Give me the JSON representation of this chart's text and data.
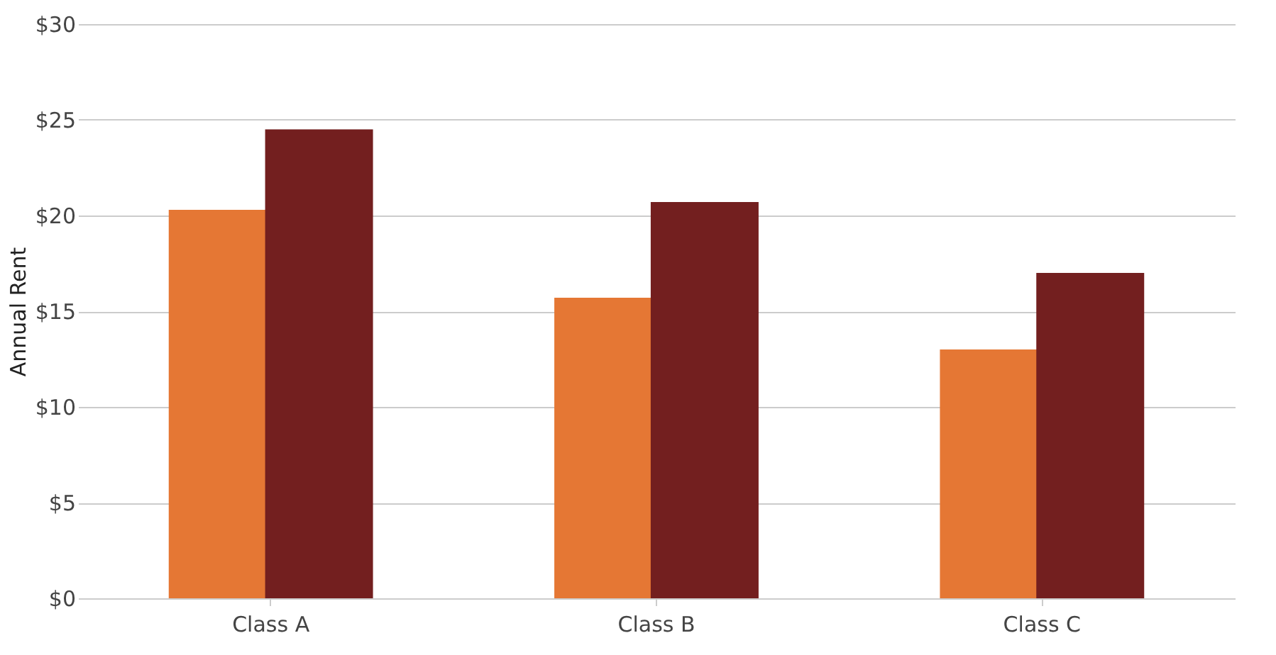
{
  "chart_data": {
    "type": "bar",
    "ylabel": "Annual Rent",
    "categories": [
      "Class A",
      "Class B",
      "Class C"
    ],
    "series": [
      {
        "color": "#e57734",
        "values": [
          20.3,
          15.7,
          13.0
        ]
      },
      {
        "color": "#731f1f",
        "values": [
          24.5,
          20.7,
          17.0
        ]
      }
    ],
    "ylim": [
      0,
      30
    ],
    "yticks": [
      {
        "value": 0,
        "label": "$0"
      },
      {
        "value": 5,
        "label": "$5"
      },
      {
        "value": 10,
        "label": "$10"
      },
      {
        "value": 15,
        "label": "$15"
      },
      {
        "value": 20,
        "label": "$20"
      },
      {
        "value": 25,
        "label": "$25"
      },
      {
        "value": 30,
        "label": "$30"
      }
    ],
    "grid": "y",
    "legend": false
  }
}
